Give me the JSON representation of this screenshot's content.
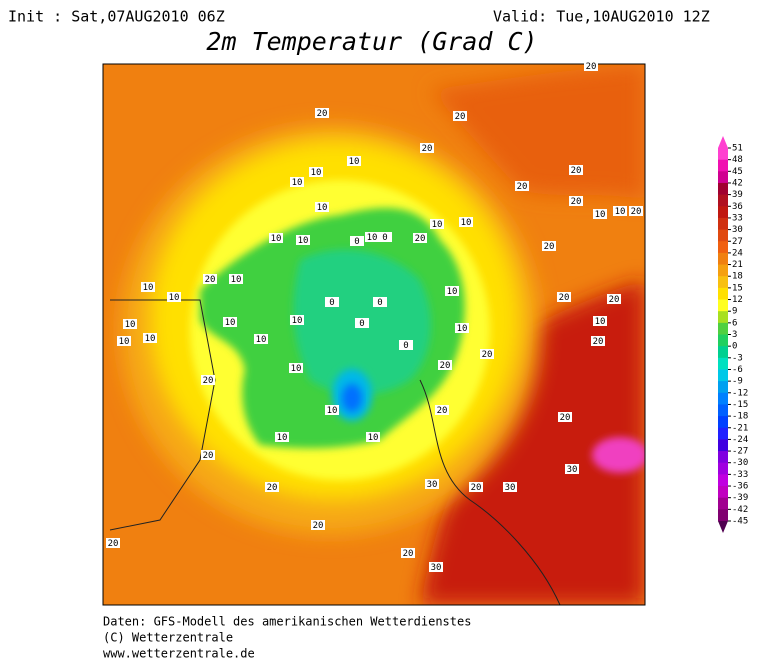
{
  "header": {
    "init": "Init : Sat,07AUG2010 06Z",
    "valid": "Valid: Tue,10AUG2010 12Z",
    "title": "2m Temperatur (Grad C)"
  },
  "map": {
    "contour_labels": [
      20,
      20,
      20,
      10,
      20,
      10,
      10,
      10,
      20,
      20,
      20,
      10,
      10,
      20,
      10,
      0,
      0,
      10,
      10,
      10,
      20,
      10,
      20,
      10,
      20,
      10,
      10,
      10,
      10,
      10,
      10,
      0,
      0,
      0,
      0,
      10,
      10,
      10,
      10,
      20,
      20,
      20,
      10,
      10,
      10,
      10,
      20,
      20,
      20,
      20,
      20,
      30,
      30,
      30,
      20,
      20,
      20,
      30,
      20,
      20,
      10,
      20
    ]
  },
  "colorbar": {
    "ticks": [
      51,
      48,
      45,
      42,
      39,
      36,
      33,
      30,
      27,
      24,
      21,
      18,
      15,
      12,
      9,
      6,
      3,
      0,
      -3,
      -6,
      -9,
      -12,
      -15,
      -18,
      -21,
      -24,
      -27,
      -30,
      -33,
      -36,
      -39,
      -42,
      -45
    ],
    "colors": [
      "#ff40d0",
      "#f010b0",
      "#d00090",
      "#a00030",
      "#b01020",
      "#c01810",
      "#d03010",
      "#e04a10",
      "#f06010",
      "#f08010",
      "#f5a010",
      "#f8c010",
      "#ffe000",
      "#ffff20",
      "#a8e020",
      "#50d040",
      "#20d060",
      "#00d090",
      "#00e0c0",
      "#00c8e8",
      "#00a0f0",
      "#0080ff",
      "#0060ff",
      "#0040ff",
      "#2020ff",
      "#4000e0",
      "#8000e0",
      "#a000e0",
      "#c000e0",
      "#c000c0",
      "#a00090",
      "#800070",
      "#500050"
    ]
  },
  "footer": {
    "line1": "Daten: GFS-Modell des amerikanischen Wetterdienstes",
    "line2": "(C) Wetterzentrale",
    "line3": "www.wetterzentrale.de"
  }
}
